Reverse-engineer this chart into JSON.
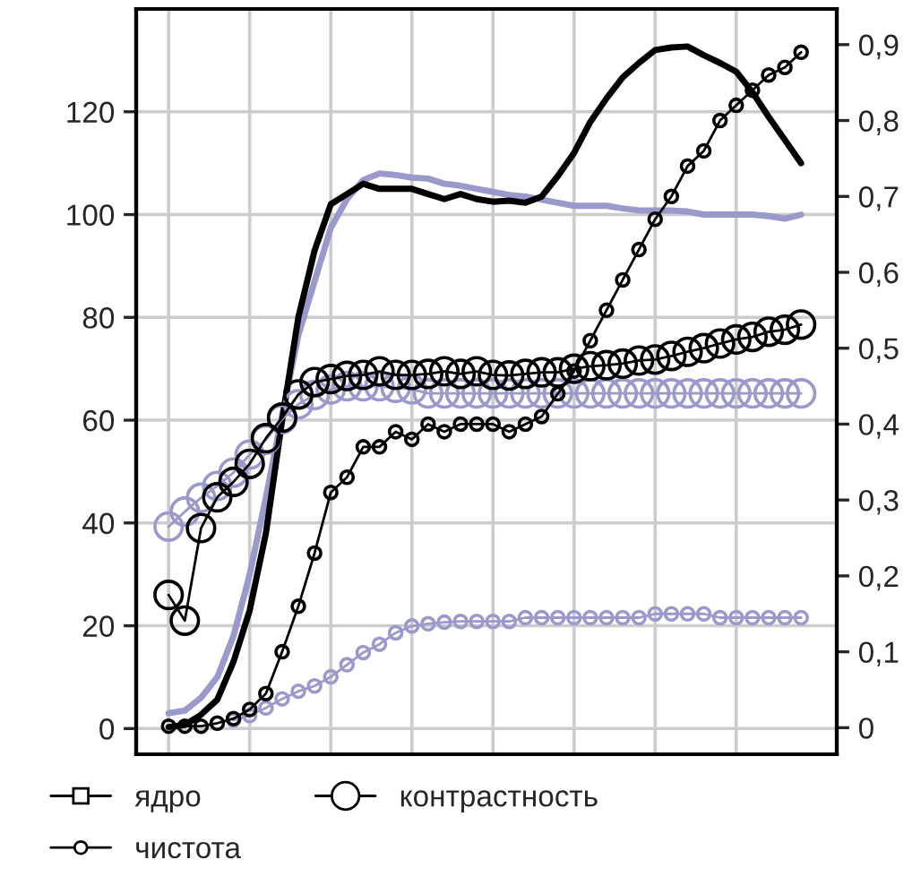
{
  "chart_data": {
    "type": "line",
    "categories": [
      null,
      null,
      null,
      null,
      null,
      null,
      null,
      null,
      null,
      null,
      null,
      null,
      null,
      null,
      null,
      null,
      null,
      null,
      null,
      null,
      null,
      null,
      null,
      null,
      null,
      null,
      null,
      null,
      null,
      null,
      null,
      null,
      null,
      null,
      null,
      null,
      null,
      null,
      null,
      null
    ],
    "ylim": [
      -5,
      140
    ],
    "yticks": [
      0,
      20,
      40,
      60,
      80,
      100,
      120
    ],
    "y2lim": [
      -0.035,
      0.947
    ],
    "y2ticks": [
      0,
      {
        "value": 0.1,
        "label": "0,1"
      },
      {
        "value": 0.2,
        "label": "0,2"
      },
      {
        "value": 0.3,
        "label": "0,3"
      },
      {
        "value": 0.4,
        "label": "0,4"
      },
      {
        "value": 0.5,
        "label": "0,5"
      },
      {
        "value": 0.6,
        "label": "0,6"
      },
      {
        "value": 0.7,
        "label": "0,7"
      },
      {
        "value": 0.8,
        "label": "0,8"
      },
      {
        "value": 0.9,
        "label": "0,9"
      }
    ],
    "grid": true,
    "legend": "bottom",
    "series": [
      {
        "color": "#9999cc",
        "marker": "none",
        "values": [
          3,
          3.5,
          6,
          10,
          18,
          30,
          45,
          61,
          76.5,
          87,
          97.4,
          103,
          106.7,
          108,
          107.7,
          107.2,
          107,
          106,
          105.6,
          105,
          104.4,
          103.8,
          103.5,
          102.9,
          102.3,
          101.7,
          101.7,
          101.7,
          101.2,
          100.8,
          100.8,
          100.8,
          100.6,
          100,
          100,
          100,
          100,
          99.7,
          99.2,
          100
        ]
      },
      {
        "name": "ядро",
        "color": "#000000",
        "marker": "none",
        "values": [
          0.3,
          0.7,
          2.7,
          5.6,
          13,
          23,
          38,
          60,
          80,
          93,
          102,
          104,
          106,
          105,
          105,
          105,
          104,
          103,
          104,
          103,
          102.5,
          102.7,
          102.3,
          103.5,
          107.5,
          112,
          118,
          122.6,
          126.7,
          129.5,
          132,
          132.5,
          132.7,
          131,
          129.5,
          127.8,
          123.8,
          119,
          114.5,
          110
        ]
      },
      {
        "color": "#9999cc",
        "marker": "circle",
        "values": [
          39.3,
          42.2,
          44.9,
          47.2,
          49.8,
          53.3,
          56.2,
          60.2,
          63.1,
          64.9,
          66,
          66.6,
          66.6,
          66.6,
          66.3,
          66,
          65.2,
          65.2,
          65.2,
          65.2,
          65.2,
          65.2,
          65.2,
          65.2,
          65.2,
          65.2,
          65.2,
          65.2,
          65.2,
          65.2,
          65.2,
          65.2,
          65.2,
          65.2,
          65.2,
          65.2,
          65.2,
          65.2,
          65.2,
          65.2
        ]
      },
      {
        "name": "контрастность",
        "color": "#000000",
        "marker": "circle",
        "values": [
          26,
          21,
          39,
          45,
          48,
          51.5,
          56.5,
          60.5,
          65,
          67.4,
          68,
          68.6,
          68.8,
          69.5,
          68.8,
          68.8,
          69,
          69.5,
          69,
          69.5,
          68.8,
          68.7,
          69,
          69.3,
          69.3,
          70,
          70.5,
          70.7,
          71,
          71.6,
          71.8,
          72.5,
          73.3,
          74,
          74.9,
          75.7,
          76.2,
          77.2,
          77.6,
          78.6
        ]
      },
      {
        "axis": "y2",
        "color": "#9999cc",
        "marker": "circle",
        "values": [
          null,
          null,
          null,
          null,
          0.01,
          0.016,
          0.026,
          0.038,
          0.048,
          0.055,
          0.067,
          0.083,
          0.099,
          0.11,
          0.125,
          0.134,
          0.137,
          0.139,
          0.14,
          0.14,
          0.14,
          0.14,
          0.145,
          0.145,
          0.145,
          0.145,
          0.145,
          0.145,
          0.145,
          0.145,
          0.15,
          0.15,
          0.15,
          0.15,
          0.145,
          0.145,
          0.145,
          0.145,
          0.145,
          0.145
        ]
      },
      {
        "name": "чистота",
        "axis": "y2",
        "color": "#000000",
        "marker": "circle",
        "values": [
          0.002,
          0.002,
          0.002,
          0.006,
          0.012,
          0.024,
          0.045,
          0.1,
          0.16,
          0.23,
          0.31,
          0.33,
          0.37,
          0.37,
          0.39,
          0.38,
          0.4,
          0.39,
          0.4,
          0.4,
          0.4,
          0.39,
          0.4,
          0.41,
          0.44,
          0.47,
          0.51,
          0.55,
          0.59,
          0.63,
          0.67,
          0.7,
          0.74,
          0.76,
          0.8,
          0.82,
          0.84,
          0.86,
          0.87,
          0.89
        ]
      }
    ]
  }
}
